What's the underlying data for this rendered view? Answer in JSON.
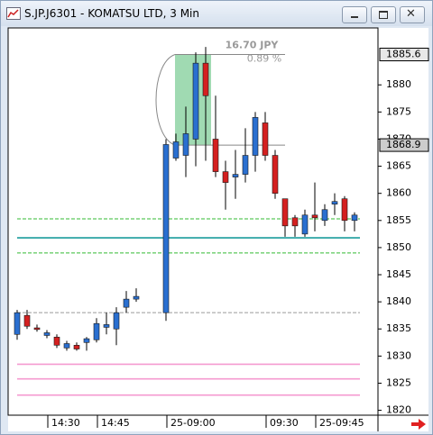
{
  "chart_data": {
    "type": "candlestick",
    "title": "S.JP.J6301 - KOMATSU LTD, 3 Min",
    "categories": [
      null,
      null,
      null,
      "14:30",
      null,
      null,
      null,
      null,
      "14:45",
      null,
      null,
      null,
      null,
      "25-09:00",
      null,
      null,
      null,
      null,
      null,
      null,
      null,
      null,
      null,
      "09:30",
      null,
      null,
      null,
      null,
      "25-09:45",
      null,
      null,
      null,
      null
    ],
    "open": [
      1834,
      1837.5,
      1835.2,
      1833.8,
      1833.5,
      1831.5,
      1832,
      1832.5,
      1833,
      1835.3,
      1835,
      1839,
      1840.5,
      1838,
      1866.5,
      1867,
      1870,
      1884,
      1870,
      1864,
      1863,
      1863.5,
      1867,
      1873,
      1867,
      1859,
      1855.5,
      1852.5,
      1856,
      1855,
      1858,
      1859,
      1855
    ],
    "high": [
      1838.5,
      1838.5,
      1835.8,
      1834.8,
      1834,
      1832.8,
      1832.5,
      1833.5,
      1837,
      1838,
      1839,
      1842,
      1842.5,
      1870,
      1871,
      1876,
      1886,
      1887,
      1878,
      1866,
      1868,
      1872,
      1875,
      1875,
      1868,
      1859,
      1856,
      1857,
      1862,
      1858,
      1860,
      1859.5,
      1856.5
    ],
    "low": [
      1833,
      1835,
      1834.5,
      1833.3,
      1831.5,
      1831,
      1831,
      1831,
      1832.5,
      1834,
      1832,
      1838,
      1840,
      1836.5,
      1866,
      1863,
      1865,
      1866,
      1863,
      1857,
      1859,
      1862,
      1864,
      1866,
      1859,
      1852,
      1852,
      1852,
      1853,
      1854,
      1856,
      1853,
      1853
    ],
    "close": [
      1838,
      1835.5,
      1834.9,
      1834.3,
      1832,
      1832.3,
      1831.3,
      1833.2,
      1836,
      1835.8,
      1838,
      1840.5,
      1841,
      1869,
      1869.5,
      1871,
      1884,
      1878,
      1864,
      1862,
      1863.5,
      1867,
      1874,
      1867,
      1860,
      1854,
      1854,
      1856,
      1855.5,
      1857,
      1858.5,
      1855,
      1856
    ],
    "up_color": "#2a6fd0",
    "down_color": "#d42020",
    "ylim": [
      1819.1,
      1890.5
    ],
    "yticks": [
      1820,
      1825,
      1830,
      1835,
      1840,
      1845,
      1850,
      1855,
      1860,
      1865,
      1870,
      1875,
      1880
    ],
    "price_tags": [
      1885.6,
      1868.9
    ],
    "levels": [
      {
        "value": 1838,
        "color": "#9a9a9a",
        "dash": true
      },
      {
        "value": 1851.8,
        "color": "#1a9c9c",
        "dash": false
      },
      {
        "value": 1855.3,
        "color": "#33bb33",
        "dash": true
      },
      {
        "value": 1849,
        "color": "#33bb33",
        "dash": true
      },
      {
        "value": 1828.5,
        "color": "#f59ad0",
        "dash": false
      },
      {
        "value": 1825.8,
        "color": "#f59ad0",
        "dash": false
      },
      {
        "value": 1822.8,
        "color": "#f59ad0",
        "dash": false
      }
    ],
    "measure": {
      "from": 1868.9,
      "to": 1885.6,
      "difference": {
        "value": 16.7,
        "label": "16.70 JPY"
      },
      "percent": {
        "value": 0.89,
        "label": "0.89 %"
      }
    }
  }
}
